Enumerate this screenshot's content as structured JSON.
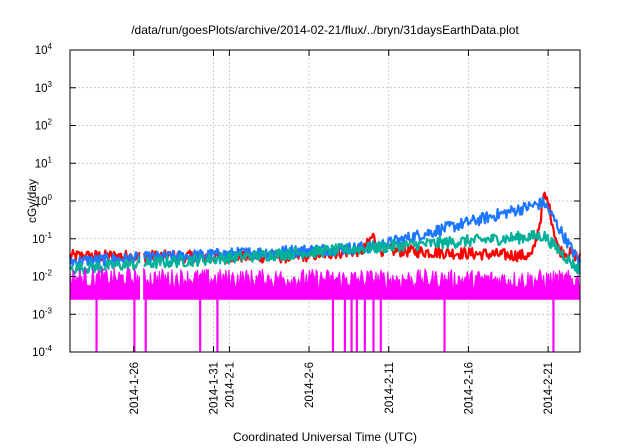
{
  "chart_data": {
    "type": "line",
    "title": "/data/run/goesPlots/archive/2014-02-21/flux/../bryn/31daysEarthData.plot",
    "xlabel": "Coordinated Universal Time (UTC)",
    "ylabel": "cGy/day",
    "yscale": "log",
    "ylim": [
      0.0001,
      10000
    ],
    "xlim": [
      "2014-01-22",
      "2014-02-23"
    ],
    "grid": true,
    "legend": "none",
    "y_ticks": [
      {
        "base": "10",
        "exp": "-4",
        "value": 0.0001
      },
      {
        "base": "10",
        "exp": "-3",
        "value": 0.001
      },
      {
        "base": "10",
        "exp": "-2",
        "value": 0.01
      },
      {
        "base": "10",
        "exp": "-1",
        "value": 0.1
      },
      {
        "base": "10",
        "exp": "0",
        "value": 1
      },
      {
        "base": "10",
        "exp": "1",
        "value": 10
      },
      {
        "base": "10",
        "exp": "2",
        "value": 100
      },
      {
        "base": "10",
        "exp": "3",
        "value": 1000
      },
      {
        "base": "10",
        "exp": "4",
        "value": 10000
      }
    ],
    "x_ticks": [
      {
        "label": "2014-1-26",
        "date": "2014-01-26"
      },
      {
        "label": "2014-1-31",
        "date": "2014-01-31"
      },
      {
        "label": "2014-2-1",
        "date": "2014-02-01"
      },
      {
        "label": "2014-2-6",
        "date": "2014-02-06"
      },
      {
        "label": "2014-2-11",
        "date": "2014-02-11"
      },
      {
        "label": "2014-2-16",
        "date": "2014-02-16"
      },
      {
        "label": "2014-2-21",
        "date": "2014-02-21"
      }
    ],
    "gap": [
      "2014-01-26T10:00",
      "2014-01-26T14:00"
    ],
    "series": [
      {
        "color": "#ff0000",
        "baseline": 0.035,
        "points": [
          [
            "2014-01-22",
            0.035
          ],
          [
            "2014-02-05",
            0.033
          ],
          [
            "2014-02-09T10:00",
            0.05
          ],
          [
            "2014-02-10",
            0.12
          ],
          [
            "2014-02-10T12:00",
            0.05
          ],
          [
            "2014-02-20",
            0.035
          ],
          [
            "2014-02-20T12:00",
            0.3
          ],
          [
            "2014-02-20T18:00",
            1.4
          ],
          [
            "2014-02-21",
            0.9
          ],
          [
            "2014-02-21T08:00",
            0.2
          ],
          [
            "2014-02-21T16:00",
            0.05
          ],
          [
            "2014-02-23",
            0.033
          ]
        ]
      },
      {
        "color": "#1e78ff",
        "baseline": 0.025,
        "points": [
          [
            "2014-01-22",
            0.025
          ],
          [
            "2014-02-10",
            0.06
          ],
          [
            "2014-02-20T18:00",
            0.9
          ],
          [
            "2014-02-21",
            0.6
          ],
          [
            "2014-02-23",
            0.022
          ]
        ]
      },
      {
        "color": "#00b09a",
        "baseline": 0.016,
        "points": [
          [
            "2014-01-22",
            0.016
          ],
          [
            "2014-02-20T18:00",
            0.12
          ],
          [
            "2014-02-23",
            0.014
          ]
        ]
      },
      {
        "color": "#ff00ff",
        "baseline": 0.009,
        "floor": 0.0025,
        "points": [
          [
            "2014-01-22",
            0.009
          ],
          [
            "2014-02-23",
            0.008
          ]
        ]
      }
    ],
    "dropouts": [
      "2014-01-23T16:00",
      "2014-01-26T01:00",
      "2014-01-26T18:00",
      "2014-01-30T04:00",
      "2014-01-31T06:00",
      "2014-02-07T12:00",
      "2014-02-08T06:00",
      "2014-02-08T16:00",
      "2014-02-09T00:00",
      "2014-02-09T12:00",
      "2014-02-10T01:00",
      "2014-02-10T12:00",
      "2014-02-14T12:00",
      "2014-02-21T08:00"
    ]
  }
}
